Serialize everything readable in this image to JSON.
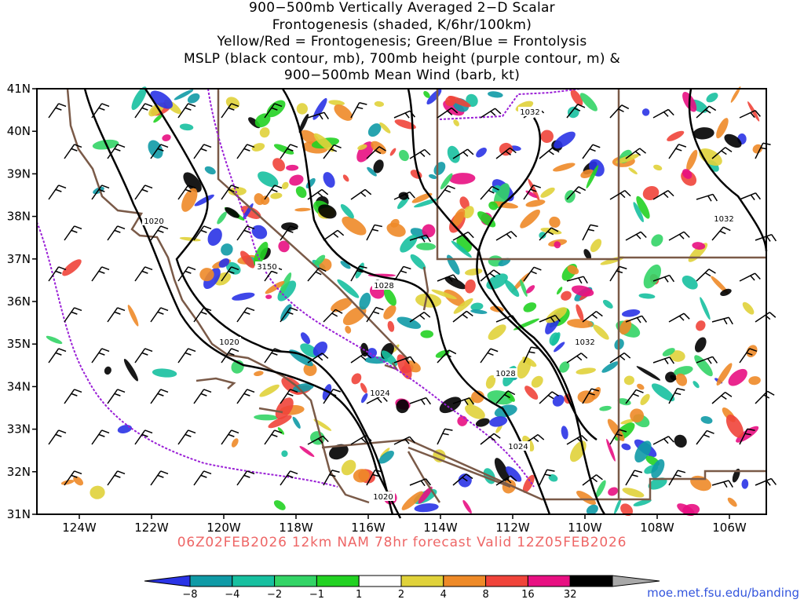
{
  "title": {
    "line1": "900−500mb Vertically Averaged 2−D Scalar",
    "line2": "Frontogenesis (shaded, K/6hr/100km)",
    "line3": "Yellow/Red = Frontogenesis;  Green/Blue = Frontolysis",
    "line4": "MSLP (black contour, mb), 700mb height (purple contour, m) &",
    "line5": "900−500mb Mean Wind (barb, kt)"
  },
  "valid_text": "06Z02FEB2026 12km NAM 78hr forecast Valid 12Z05FEB2026",
  "credit": "moe.met.fsu.edu/banding",
  "lat_labels": [
    "41N",
    "40N",
    "39N",
    "38N",
    "37N",
    "36N",
    "35N",
    "34N",
    "33N",
    "32N",
    "31N"
  ],
  "lon_labels": [
    "124W",
    "122W",
    "120W",
    "118W",
    "116W",
    "114W",
    "112W",
    "110W",
    "108W",
    "106W"
  ],
  "colorbar": {
    "labels": [
      "−8",
      "−4",
      "−2",
      "−1",
      "1",
      "2",
      "4",
      "8",
      "16",
      "32"
    ],
    "colors": [
      "#2a33e6",
      "#0f9aa6",
      "#17c0a0",
      "#33d466",
      "#22d222",
      "#ffffff",
      "#e0d23a",
      "#ee8a28",
      "#f0443a",
      "#e81082",
      "#000000",
      "#a8a8a8"
    ]
  },
  "mslp_contour_labels": [
    "1020",
    "1020",
    "1020",
    "1024",
    "1024",
    "1028",
    "1028",
    "1032",
    "1032",
    "1032"
  ],
  "height_contour_labels": [
    "3150"
  ],
  "colors": {
    "mslp_contour": "#000000",
    "height_contour": "#9a1fd6",
    "coastline": "#7a5a48",
    "state_border": "#7a5a48",
    "valid_text": "#ee6666",
    "credit": "#3355dd"
  }
}
